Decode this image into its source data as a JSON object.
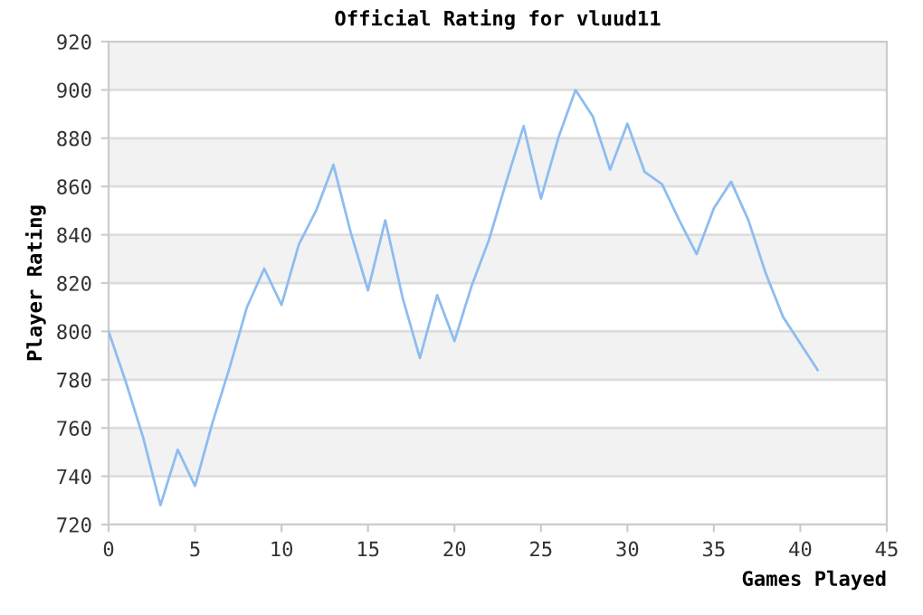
{
  "chart_data": {
    "type": "line",
    "title": "Official Rating for vluud11",
    "xlabel": "Games Played",
    "ylabel": "Player Rating",
    "x": [
      0,
      1,
      2,
      3,
      4,
      5,
      6,
      7,
      8,
      9,
      10,
      11,
      12,
      13,
      14,
      15,
      16,
      17,
      18,
      19,
      20,
      21,
      22,
      23,
      24,
      25,
      26,
      27,
      28,
      29,
      30,
      31,
      32,
      33,
      34,
      35,
      36,
      37,
      38,
      39,
      40,
      41
    ],
    "series": [
      {
        "color": "#8dbdf0",
        "values": [
          800,
          779,
          756,
          728,
          751,
          736,
          762,
          785,
          810,
          826,
          811,
          836,
          850,
          869,
          841,
          817,
          846,
          814,
          789,
          815,
          796,
          819,
          838,
          862,
          885,
          855,
          880,
          900,
          889,
          867,
          886,
          866,
          861,
          846,
          832,
          851,
          862,
          846,
          824,
          806,
          795,
          784
        ]
      }
    ],
    "xlim": [
      0,
      45
    ],
    "xticks": [
      0,
      5,
      10,
      15,
      20,
      25,
      30,
      35,
      40,
      45
    ],
    "ylim": [
      720,
      920
    ],
    "yticks": [
      720,
      740,
      760,
      780,
      800,
      820,
      840,
      860,
      880,
      900,
      920
    ],
    "grid": "y",
    "marker": "none",
    "line_style": "solid",
    "bands": [
      {
        "axis": "y",
        "from": 740,
        "to": 760,
        "color": "#f2f2f2"
      },
      {
        "axis": "y",
        "from": 780,
        "to": 800,
        "color": "#f2f2f2"
      },
      {
        "axis": "y",
        "from": 820,
        "to": 840,
        "color": "#f2f2f2"
      },
      {
        "axis": "y",
        "from": 860,
        "to": 880,
        "color": "#f2f2f2"
      },
      {
        "axis": "y",
        "from": 900,
        "to": 920,
        "color": "#f2f2f2"
      }
    ]
  }
}
